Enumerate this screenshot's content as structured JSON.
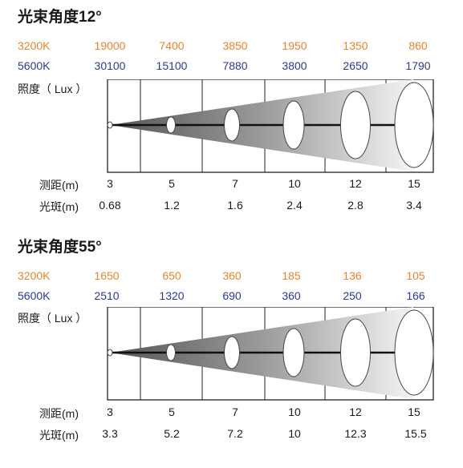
{
  "sections": [
    {
      "title": "光束角度12°",
      "row3200": {
        "label": "3200K",
        "values": [
          "19000",
          "7400",
          "3850",
          "1950",
          "1350",
          "860"
        ]
      },
      "row5600": {
        "label": "5600K",
        "values": [
          "30100",
          "15100",
          "7880",
          "3800",
          "2650",
          "1790"
        ]
      },
      "lux_label": "照度（ Lux ）",
      "distance": {
        "label": "测距(m)",
        "values": [
          "3",
          "5",
          "7",
          "10",
          "12",
          "15"
        ]
      },
      "spot": {
        "label": "光斑(m)",
        "values": [
          "0.68",
          "1.2",
          "1.6",
          "2.4",
          "2.8",
          "3.4"
        ]
      }
    },
    {
      "title": "光束角度55°",
      "row3200": {
        "label": "3200K",
        "values": [
          "1650",
          "650",
          "360",
          "185",
          "136",
          "105"
        ]
      },
      "row5600": {
        "label": "5600K",
        "values": [
          "2510",
          "1320",
          "690",
          "360",
          "250",
          "166"
        ]
      },
      "lux_label": "照度（ Lux ）",
      "distance": {
        "label": "测距(m)",
        "values": [
          "3",
          "5",
          "7",
          "10",
          "12",
          "15"
        ]
      },
      "spot": {
        "label": "光斑(m)",
        "values": [
          "3.3",
          "5.2",
          "7.2",
          "10",
          "12.3",
          "15.5"
        ]
      }
    }
  ],
  "colors": {
    "k3200": "#e8842c",
    "k5600": "#2b3a8f"
  }
}
